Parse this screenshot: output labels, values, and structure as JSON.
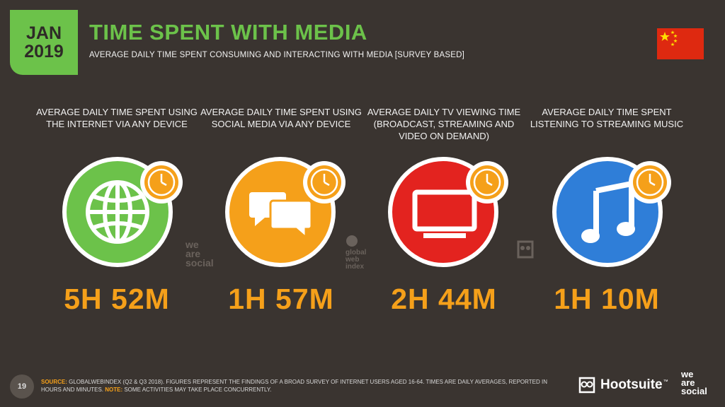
{
  "badge": {
    "month": "JAN",
    "year": "2019"
  },
  "header": {
    "title": "TIME SPENT WITH MEDIA",
    "subtitle": "AVERAGE DAILY TIME SPENT CONSUMING AND INTERACTING WITH MEDIA [SURVEY BASED]"
  },
  "colors": {
    "background": "#3a3430",
    "accent_green": "#6cc24a",
    "value_orange": "#f5a01a",
    "internet": "#6cc24a",
    "social": "#f5a01a",
    "tv": "#e3231f",
    "music": "#2f7ed8",
    "flag_red": "#de2910",
    "flag_star": "#ffde00"
  },
  "metrics": [
    {
      "label": "AVERAGE DAILY TIME SPENT USING THE INTERNET VIA ANY DEVICE",
      "value": "5H 52M",
      "icon": "globe-icon"
    },
    {
      "label": "AVERAGE DAILY TIME SPENT USING SOCIAL MEDIA VIA ANY DEVICE",
      "value": "1H 57M",
      "icon": "speech-bubbles-icon"
    },
    {
      "label": "AVERAGE DAILY TV VIEWING TIME (BROADCAST, STREAMING AND VIDEO ON DEMAND)",
      "value": "2H 44M",
      "icon": "tv-icon"
    },
    {
      "label": "AVERAGE DAILY TIME SPENT LISTENING TO STREAMING MUSIC",
      "value": "1H 10M",
      "icon": "music-note-icon"
    }
  ],
  "watermarks": {
    "was": "we are social",
    "gwi": "global web index"
  },
  "footer": {
    "page": "19",
    "source_label": "SOURCE:",
    "source_text": " GLOBALWEBINDEX (Q2 & Q3 2018). FIGURES REPRESENT THE FINDINGS OF A BROAD SURVEY OF INTERNET USERS AGED 16-64. TIMES ARE DAILY AVERAGES, REPORTED IN HOURS AND MINUTES. ",
    "note_label": "NOTE:",
    "note_text": " SOME ACTIVITIES MAY TAKE PLACE CONCURRENTLY.",
    "hootsuite": "Hootsuite",
    "tm": "™",
    "was_logo": [
      "we",
      "are",
      "social"
    ]
  }
}
